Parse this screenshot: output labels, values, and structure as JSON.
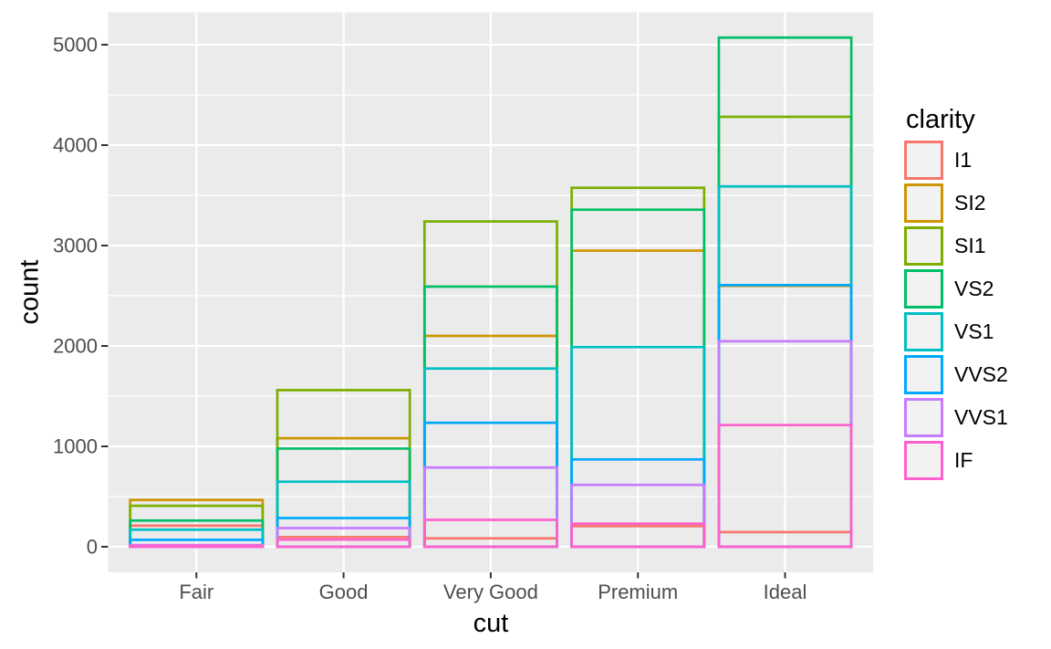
{
  "chart_data": {
    "type": "bar",
    "subtype": "outline-only bars, position identity (overlapping, transparent fill, colored outlines)",
    "title": "",
    "xlabel": "cut",
    "ylabel": "count",
    "legend_title": "clarity",
    "legend_position": "right",
    "categories": [
      "Fair",
      "Good",
      "Very Good",
      "Premium",
      "Ideal"
    ],
    "series": [
      {
        "name": "I1",
        "color": "#F8766D",
        "values": [
          210,
          96,
          84,
          205,
          146
        ]
      },
      {
        "name": "SI2",
        "color": "#CD9600",
        "values": [
          466,
          1081,
          2100,
          2949,
          2598
        ]
      },
      {
        "name": "SI1",
        "color": "#7CAE00",
        "values": [
          408,
          1560,
          3240,
          3575,
          4282
        ]
      },
      {
        "name": "VS2",
        "color": "#00BE67",
        "values": [
          261,
          978,
          2591,
          3357,
          5071
        ]
      },
      {
        "name": "VS1",
        "color": "#00BFC4",
        "values": [
          170,
          648,
          1775,
          1989,
          3589
        ]
      },
      {
        "name": "VVS2",
        "color": "#00A9FF",
        "values": [
          69,
          286,
          1235,
          870,
          2606
        ]
      },
      {
        "name": "VVS1",
        "color": "#C77CFF",
        "values": [
          17,
          186,
          789,
          616,
          2047
        ]
      },
      {
        "name": "IF",
        "color": "#FF61CC",
        "values": [
          9,
          71,
          268,
          230,
          1212
        ]
      }
    ],
    "ylim": [
      0,
      5071
    ],
    "yticks": [
      0,
      1000,
      2000,
      3000,
      4000,
      5000
    ],
    "ytick_labels": [
      "0",
      "1000",
      "2000",
      "3000",
      "4000",
      "5000"
    ],
    "minor_breaks": [
      500,
      1500,
      2500,
      3500,
      4500
    ],
    "grid": "major white + minor white on grey panel",
    "colors": {
      "panel_bg": "#EBEBEB",
      "grid_major": "#FFFFFF",
      "grid_minor": "#FFFFFF",
      "axis_text": "#4D4D4D",
      "tick_mark": "#333333",
      "axis_title": "#000000",
      "legend_key_bg": "#F2F2F2",
      "figure_bg": "#FFFFFF"
    }
  }
}
